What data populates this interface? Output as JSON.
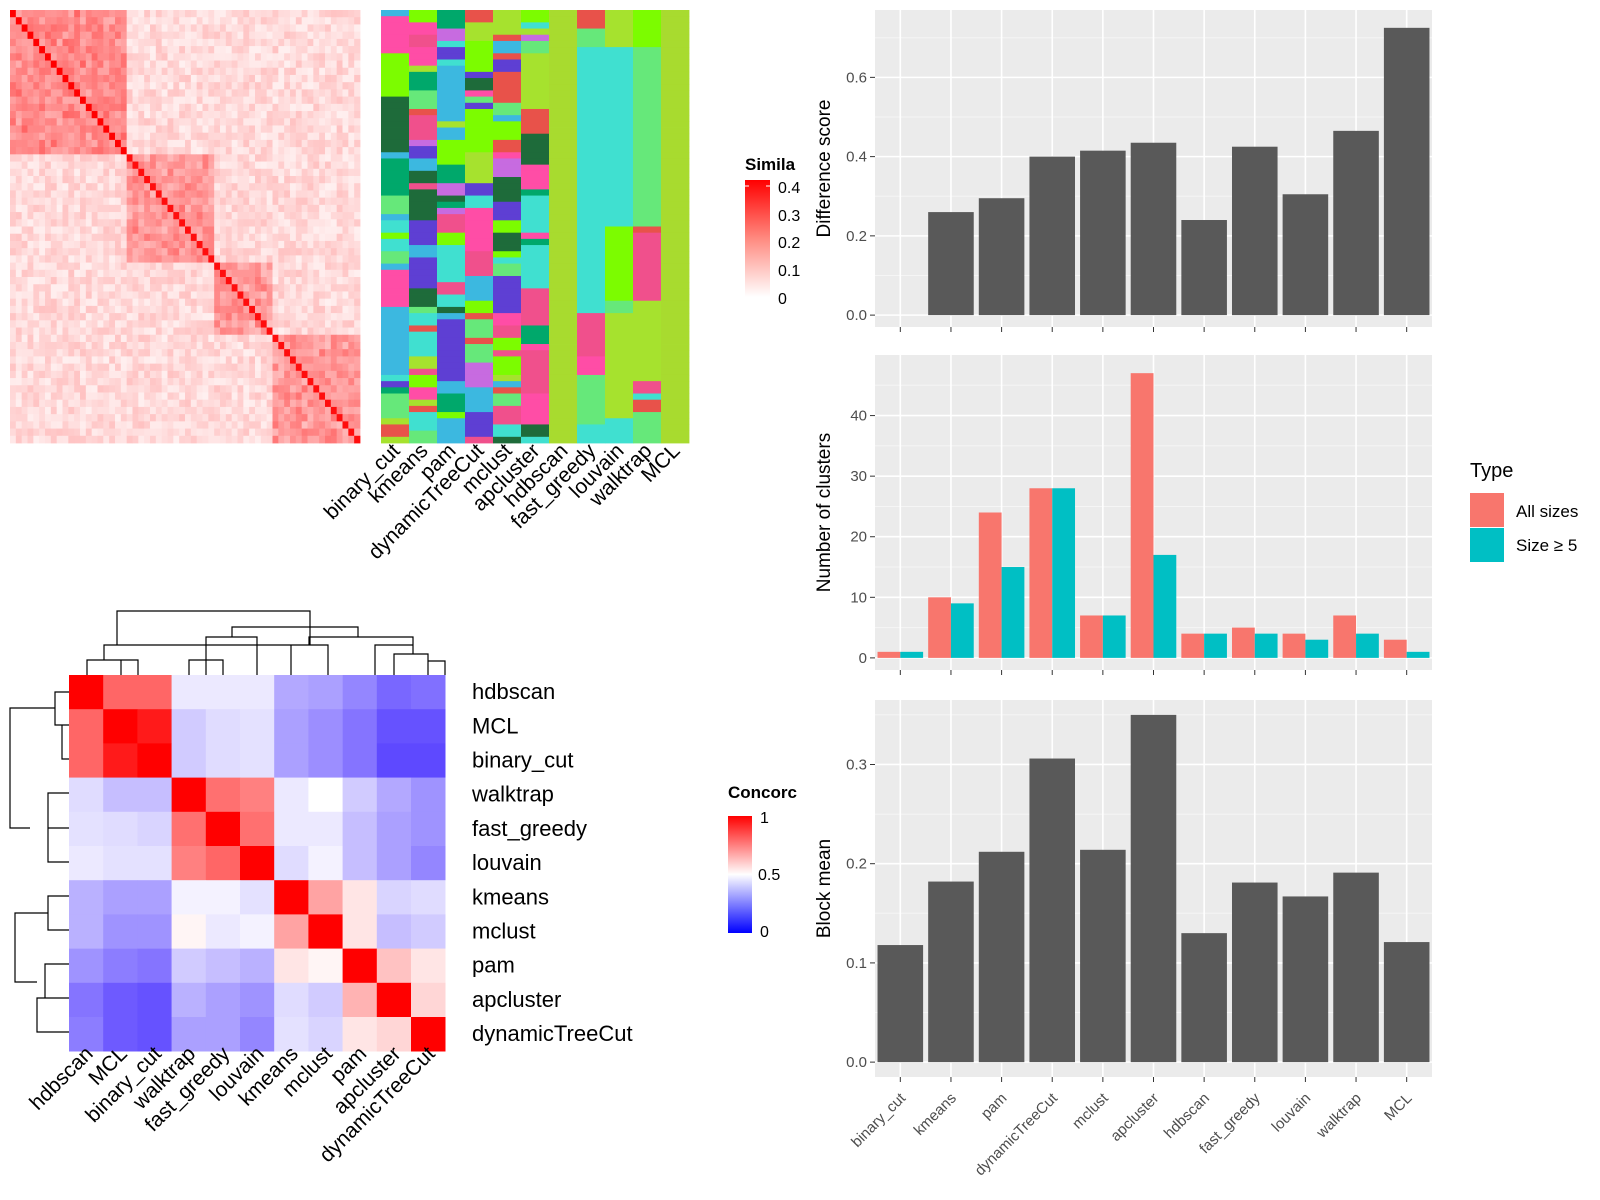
{
  "methods_plot_order": [
    "binary_cut",
    "kmeans",
    "pam",
    "dynamicTreeCut",
    "mclust",
    "apcluster",
    "hdbscan",
    "fast_greedy",
    "louvain",
    "walktrap",
    "MCL"
  ],
  "colors": {
    "bar": "#595959",
    "all_sizes": "#F8766D",
    "size5": "#00BFC4",
    "panel_bg": "#EBEBEB",
    "grid": "#FFFFFF"
  },
  "similarity_heatmap": {
    "legend_title": "Simila",
    "legend_ticks": [
      "0.4",
      "0.3",
      "0.2",
      "0.1",
      "0"
    ],
    "column_labels": [
      "binary_cut",
      "kmeans",
      "pam",
      "dynamicTreeCut",
      "mclust",
      "apcluster",
      "hdbscan",
      "fast_greedy",
      "louvain",
      "walktrap",
      "MCL"
    ]
  },
  "concordance_heatmap": {
    "legend_title": "Concorc",
    "legend_ticks": [
      "1",
      "0.5",
      "0"
    ],
    "order": [
      "hdbscan",
      "MCL",
      "binary_cut",
      "walktrap",
      "fast_greedy",
      "louvain",
      "kmeans",
      "mclust",
      "pam",
      "apcluster",
      "dynamicTreeCut"
    ],
    "matrix": [
      [
        1.0,
        0.8,
        0.8,
        0.45,
        0.45,
        0.45,
        0.3,
        0.28,
        0.22,
        0.15,
        0.17
      ],
      [
        0.8,
        1.0,
        0.95,
        0.38,
        0.42,
        0.43,
        0.28,
        0.24,
        0.18,
        0.1,
        0.1
      ],
      [
        0.8,
        0.95,
        1.0,
        0.38,
        0.42,
        0.43,
        0.28,
        0.24,
        0.18,
        0.08,
        0.08
      ],
      [
        0.42,
        0.35,
        0.35,
        1.0,
        0.78,
        0.75,
        0.45,
        0.5,
        0.38,
        0.3,
        0.25
      ],
      [
        0.43,
        0.42,
        0.4,
        0.78,
        1.0,
        0.78,
        0.45,
        0.45,
        0.35,
        0.28,
        0.25
      ],
      [
        0.45,
        0.43,
        0.43,
        0.75,
        0.8,
        1.0,
        0.42,
        0.47,
        0.35,
        0.28,
        0.22
      ],
      [
        0.32,
        0.28,
        0.28,
        0.47,
        0.47,
        0.43,
        1.0,
        0.68,
        0.55,
        0.4,
        0.42
      ],
      [
        0.32,
        0.25,
        0.25,
        0.52,
        0.45,
        0.47,
        0.68,
        1.0,
        0.55,
        0.35,
        0.38
      ],
      [
        0.25,
        0.2,
        0.18,
        0.38,
        0.35,
        0.32,
        0.55,
        0.52,
        1.0,
        0.62,
        0.55
      ],
      [
        0.18,
        0.12,
        0.1,
        0.32,
        0.28,
        0.25,
        0.42,
        0.38,
        0.65,
        1.0,
        0.58
      ],
      [
        0.2,
        0.12,
        0.1,
        0.28,
        0.28,
        0.22,
        0.43,
        0.4,
        0.55,
        0.58,
        1.0
      ]
    ]
  },
  "chart_data": [
    {
      "type": "bar",
      "categories": [
        "binary_cut",
        "kmeans",
        "pam",
        "dynamicTreeCut",
        "mclust",
        "apcluster",
        "hdbscan",
        "fast_greedy",
        "louvain",
        "walktrap",
        "MCL"
      ],
      "values": [
        0.0,
        0.26,
        0.295,
        0.4,
        0.415,
        0.435,
        0.24,
        0.425,
        0.305,
        0.465,
        0.725
      ],
      "ylabel": "Difference score",
      "ylim": [
        -0.03,
        0.77
      ],
      "yticks": [
        0.0,
        0.2,
        0.4,
        0.6
      ],
      "ytick_labels": [
        "0.0",
        "0.2",
        "0.4",
        "0.6"
      ]
    },
    {
      "type": "bar",
      "categories": [
        "binary_cut",
        "kmeans",
        "pam",
        "dynamicTreeCut",
        "mclust",
        "apcluster",
        "hdbscan",
        "fast_greedy",
        "louvain",
        "walktrap",
        "MCL"
      ],
      "series": [
        {
          "name": "All sizes",
          "values": [
            1,
            10,
            24,
            28,
            7,
            47,
            4,
            5,
            4,
            7,
            3
          ]
        },
        {
          "name": "Size ≥ 5",
          "values": [
            1,
            9,
            15,
            28,
            7,
            17,
            4,
            4,
            3,
            4,
            1
          ]
        }
      ],
      "ylabel": "Number of clusters",
      "ylim": [
        -2,
        50
      ],
      "yticks": [
        0,
        10,
        20,
        30,
        40
      ],
      "ytick_labels": [
        "0",
        "10",
        "20",
        "30",
        "40"
      ],
      "legend_title": "Type",
      "legend_position": "right"
    },
    {
      "type": "bar",
      "categories": [
        "binary_cut",
        "kmeans",
        "pam",
        "dynamicTreeCut",
        "mclust",
        "apcluster",
        "hdbscan",
        "fast_greedy",
        "louvain",
        "walktrap",
        "MCL"
      ],
      "values": [
        0.118,
        0.182,
        0.212,
        0.306,
        0.214,
        0.35,
        0.13,
        0.181,
        0.167,
        0.191,
        0.121
      ],
      "ylabel": "Block mean",
      "ylim": [
        -0.015,
        0.365
      ],
      "yticks": [
        0.0,
        0.1,
        0.2,
        0.3
      ],
      "ytick_labels": [
        "0.0",
        "0.1",
        "0.2",
        "0.3"
      ]
    }
  ]
}
